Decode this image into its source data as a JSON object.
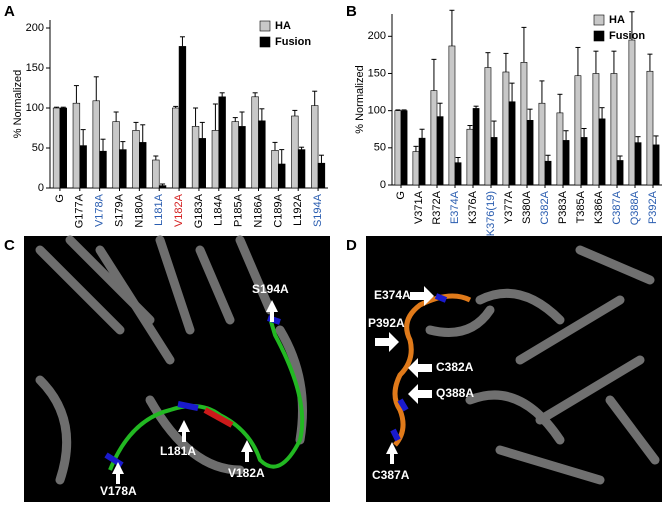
{
  "panel_letters": [
    "A",
    "B",
    "C",
    "D"
  ],
  "chart_data": [
    {
      "type": "bar",
      "y_label": "% Normalized",
      "categories": [
        "G",
        "G177A",
        "V178A",
        "S179A",
        "N180A",
        "L181A",
        "V182A",
        "G183A",
        "L184A",
        "P185A",
        "N186A",
        "C189A",
        "L192A",
        "S194A"
      ],
      "label_colors": [
        "#000000",
        "#000000",
        "#2a5db0",
        "#000000",
        "#000000",
        "#2a5db0",
        "#d42020",
        "#000000",
        "#000000",
        "#000000",
        "#000000",
        "#000000",
        "#000000",
        "#2a5db0"
      ],
      "series": [
        {
          "name": "HA",
          "color": "#c8c8c8",
          "values": [
            100,
            106,
            109,
            83,
            72,
            35,
            100,
            77,
            72,
            83,
            114,
            47,
            90,
            103
          ],
          "errors": [
            1,
            22,
            30,
            12,
            10,
            5,
            2,
            23,
            33,
            5,
            5,
            10,
            7,
            18
          ]
        },
        {
          "name": "Fusion",
          "color": "#000000",
          "values": [
            100,
            53,
            46,
            48,
            57,
            3,
            177,
            62,
            114,
            77,
            84,
            30,
            48,
            31
          ],
          "errors": [
            1,
            20,
            15,
            10,
            22,
            2,
            12,
            20,
            5,
            18,
            15,
            18,
            3,
            10
          ]
        }
      ],
      "ylim": [
        0,
        210
      ],
      "yticks": [
        0,
        50,
        100,
        150,
        200
      ],
      "legend": "upper right"
    },
    {
      "type": "bar",
      "y_label": "% Normalized",
      "categories": [
        "G",
        "V371A",
        "R372A",
        "E374A",
        "K376A",
        "K376(19)",
        "Y377A",
        "S380A",
        "C382A",
        "P383A",
        "T385A",
        "K386A",
        "C387A",
        "Q388A",
        "P392A"
      ],
      "label_colors": [
        "#000000",
        "#000000",
        "#000000",
        "#2a5db0",
        "#000000",
        "#2a5db0",
        "#000000",
        "#000000",
        "#2a5db0",
        "#000000",
        "#000000",
        "#000000",
        "#2a5db0",
        "#2a5db0",
        "#2a5db0"
      ],
      "series": [
        {
          "name": "HA",
          "color": "#c8c8c8",
          "values": [
            100,
            45,
            127,
            187,
            75,
            158,
            152,
            165,
            110,
            97,
            147,
            150,
            150,
            195,
            153
          ],
          "errors": [
            1,
            7,
            42,
            48,
            5,
            20,
            25,
            47,
            30,
            25,
            38,
            30,
            30,
            38,
            23
          ]
        },
        {
          "name": "Fusion",
          "color": "#000000",
          "values": [
            100,
            63,
            92,
            30,
            103,
            64,
            112,
            87,
            32,
            60,
            64,
            89,
            33,
            57,
            54
          ],
          "errors": [
            1,
            12,
            18,
            7,
            3,
            22,
            25,
            15,
            8,
            13,
            12,
            15,
            6,
            8,
            12
          ]
        }
      ],
      "ylim": [
        0,
        230
      ],
      "yticks": [
        0,
        50,
        100,
        150,
        200
      ],
      "legend": "upper right"
    }
  ],
  "structures": [
    {
      "labels": [
        "S194A",
        "L181A",
        "V182A",
        "V178A"
      ]
    },
    {
      "labels": [
        "E374A",
        "P392A",
        "C382A",
        "Q388A",
        "C387A"
      ]
    }
  ]
}
